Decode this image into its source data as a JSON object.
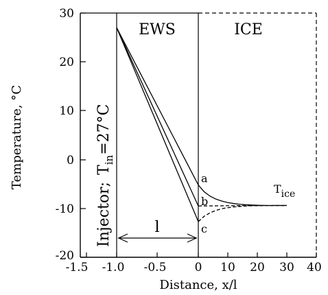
{
  "chart_data": {
    "type": "line",
    "title": "",
    "xlabel": "Distance, x/l",
    "ylabel": "Temperature, °C",
    "ylim": [
      -20,
      30
    ],
    "y_ticks": [
      -20,
      -10,
      0,
      10,
      20,
      30
    ],
    "x_ticks_left": [
      "-1.5",
      "-1.0",
      "-0.5",
      "0"
    ],
    "x_ticks_right": [
      "10",
      "20",
      "30",
      "40"
    ],
    "grid": false,
    "regions": {
      "injector": "Injector;",
      "injector_temp": "T",
      "injector_temp_sub": "in",
      "injector_temp_value": "=27°C",
      "ews": "EWS",
      "ice": "ICE",
      "length_label": "l"
    },
    "t_ice_label": "T",
    "t_ice_sub": "ice",
    "series": [
      {
        "name": "a",
        "ews_x": [
          -1.0,
          0
        ],
        "ews_y": [
          27,
          -5.2
        ],
        "ice_x": [
          0,
          2,
          4,
          6,
          8,
          10,
          12,
          14,
          16,
          18,
          20,
          22,
          24,
          26,
          28,
          30
        ],
        "ice_y": [
          -5.2,
          -6.6,
          -7.5,
          -8.1,
          -8.5,
          -8.8,
          -9.0,
          -9.15,
          -9.25,
          -9.3,
          -9.35,
          -9.38,
          -9.4,
          -9.4,
          -9.4,
          -9.4
        ],
        "style": "solid"
      },
      {
        "name": "b",
        "ews_x": [
          -1.0,
          0
        ],
        "ews_y": [
          27,
          -9.5
        ],
        "ice_x": [
          0,
          10,
          20,
          30
        ],
        "ice_y": [
          -9.5,
          -9.45,
          -9.42,
          -9.4
        ],
        "style": "dashed"
      },
      {
        "name": "c",
        "ews_x": [
          -1.0,
          0
        ],
        "ews_y": [
          27,
          -12.7
        ],
        "ice_x": [
          0,
          2,
          4,
          6,
          8,
          10,
          12,
          14,
          16,
          18,
          20,
          22,
          24,
          26,
          28,
          30
        ],
        "ice_y": [
          -12.7,
          -11.6,
          -10.9,
          -10.4,
          -10.05,
          -9.85,
          -9.7,
          -9.6,
          -9.52,
          -9.47,
          -9.44,
          -9.42,
          -9.41,
          -9.4,
          -9.4,
          -9.4
        ],
        "style": "dashed"
      }
    ]
  }
}
